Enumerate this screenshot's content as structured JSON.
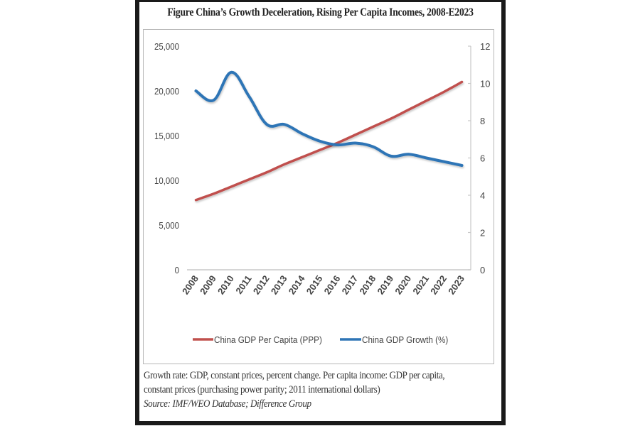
{
  "chart_data": {
    "type": "line",
    "title": "Figure China’s Growth Deceleration, Rising Per Capita Incomes, 2008-E2023",
    "categories": [
      "2008",
      "2009",
      "2010",
      "2011",
      "2012",
      "2013",
      "2014",
      "2015",
      "2016",
      "2017",
      "2018",
      "2019",
      "2020",
      "2021",
      "2022",
      "2023"
    ],
    "series": [
      {
        "name": "China GDP Per Capita (PPP)",
        "axis": "left",
        "color": "#c0504d",
        "values": [
          7800,
          8500,
          9300,
          10100,
          10900,
          11800,
          12600,
          13400,
          14200,
          15100,
          16000,
          16900,
          17900,
          18900,
          19900,
          21000
        ]
      },
      {
        "name": "China GDP Growth (%)",
        "axis": "right",
        "color": "#2e75b6",
        "values": [
          9.6,
          9.1,
          10.6,
          9.3,
          7.8,
          7.8,
          7.3,
          6.9,
          6.7,
          6.8,
          6.6,
          6.1,
          6.2,
          6.0,
          5.8,
          5.6
        ]
      }
    ],
    "y_left": {
      "ylim": [
        0,
        25000
      ],
      "ticks": [
        "0",
        "5,000",
        "10,000",
        "15,000",
        "20,000",
        "25,000"
      ],
      "tick_values": [
        0,
        5000,
        10000,
        15000,
        20000,
        25000
      ]
    },
    "y_right": {
      "ylim": [
        0,
        12
      ],
      "ticks": [
        "0",
        "2",
        "4",
        "6",
        "8",
        "10",
        "12"
      ],
      "tick_values": [
        0,
        2,
        4,
        6,
        8,
        10,
        12
      ]
    },
    "xlabel": "",
    "ylabel": "",
    "grid": false,
    "legend_position": "bottom"
  },
  "caption": {
    "line1": "Growth rate: GDP, constant prices, percent change. Per capita income: GDP per capita,",
    "line2": "constant prices (purchasing power parity; 2011 international dollars)",
    "source": "Source: IMF/WEO Database; Difference Group"
  }
}
